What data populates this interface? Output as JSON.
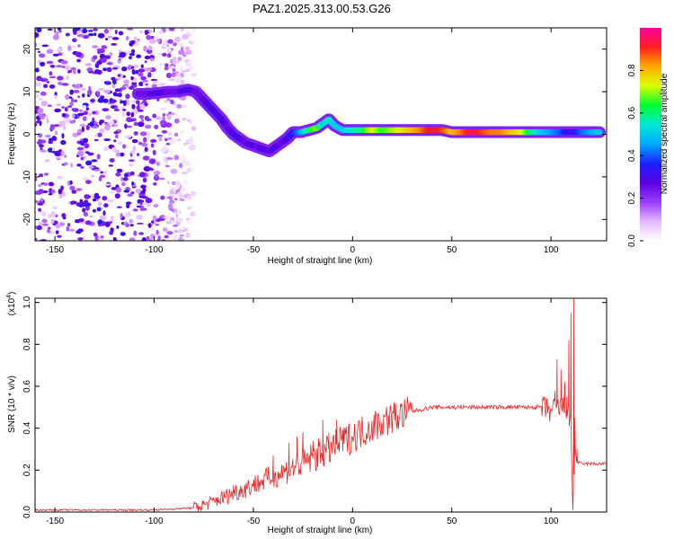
{
  "title": "PAZ1.2025.313.00.53.G26",
  "chart_data": [
    {
      "type": "heatmap",
      "xlabel": "Height of straight line (km)",
      "ylabel": "Frequency (Hz)",
      "xlim": [
        -160,
        128
      ],
      "ylim": [
        -25,
        25
      ],
      "xticks": [
        -150,
        -100,
        -50,
        0,
        50,
        100
      ],
      "yticks": [
        -20,
        -10,
        0,
        10,
        20
      ],
      "colorbar": {
        "label": "Normalized spectral amplitude",
        "range": [
          0,
          1
        ],
        "ticks": [
          "0.0",
          "0.2",
          "0.4",
          "0.6",
          "0.8"
        ],
        "tick_values": [
          0,
          0.2,
          0.4,
          0.6,
          0.8
        ],
        "colors": [
          "#ffffff",
          "#e6b8ff",
          "#9a3cff",
          "#5a00e0",
          "#1a20ff",
          "#00aaff",
          "#00e8d8",
          "#00ff30",
          "#d8ff00",
          "#ffaa00",
          "#ff2020",
          "#ff00a0"
        ]
      },
      "ridge": [
        {
          "x": -108,
          "y": 9.5,
          "amp": 0.25
        },
        {
          "x": -103,
          "y": 9.5,
          "amp": 0.25
        },
        {
          "x": -98,
          "y": 9.7,
          "amp": 0.3
        },
        {
          "x": -93,
          "y": 10,
          "amp": 0.25
        },
        {
          "x": -88,
          "y": 10,
          "amp": 0.25
        },
        {
          "x": -83,
          "y": 10.5,
          "amp": 0.3
        },
        {
          "x": -79,
          "y": 10,
          "amp": 0.25
        },
        {
          "x": -76,
          "y": 8.5,
          "amp": 0.25
        },
        {
          "x": -73,
          "y": 7,
          "amp": 0.3
        },
        {
          "x": -70,
          "y": 5.5,
          "amp": 0.3
        },
        {
          "x": -66,
          "y": 3.5,
          "amp": 0.3
        },
        {
          "x": -63,
          "y": 1.5,
          "amp": 0.25
        },
        {
          "x": -60,
          "y": 0,
          "amp": 0.3
        },
        {
          "x": -57,
          "y": -1,
          "amp": 0.3
        },
        {
          "x": -54,
          "y": -2,
          "amp": 0.25
        },
        {
          "x": -51,
          "y": -2.5,
          "amp": 0.3
        },
        {
          "x": -48,
          "y": -3,
          "amp": 0.25
        },
        {
          "x": -45,
          "y": -3.5,
          "amp": 0.3
        },
        {
          "x": -42,
          "y": -4,
          "amp": 0.25
        },
        {
          "x": -39,
          "y": -3,
          "amp": 0.3
        },
        {
          "x": -36,
          "y": -2,
          "amp": 0.25
        },
        {
          "x": -33,
          "y": -1,
          "amp": 0.3
        },
        {
          "x": -30,
          "y": 0.5,
          "amp": 0.35
        },
        {
          "x": -26,
          "y": 0.5,
          "amp": 0.45
        },
        {
          "x": -22,
          "y": 1,
          "amp": 0.6
        },
        {
          "x": -18,
          "y": 1.5,
          "amp": 0.7
        },
        {
          "x": -15,
          "y": 2.5,
          "amp": 0.5
        },
        {
          "x": -12,
          "y": 3.5,
          "amp": 0.55
        },
        {
          "x": -9,
          "y": 2,
          "amp": 0.5
        },
        {
          "x": -5,
          "y": 1,
          "amp": 0.5
        },
        {
          "x": 0,
          "y": 1,
          "amp": 0.55
        },
        {
          "x": 5,
          "y": 1,
          "amp": 0.6
        },
        {
          "x": 10,
          "y": 1,
          "amp": 0.75
        },
        {
          "x": 15,
          "y": 1,
          "amp": 0.65
        },
        {
          "x": 20,
          "y": 1,
          "amp": 0.7
        },
        {
          "x": 25,
          "y": 1,
          "amp": 0.75
        },
        {
          "x": 30,
          "y": 1,
          "amp": 0.8
        },
        {
          "x": 35,
          "y": 1,
          "amp": 0.85
        },
        {
          "x": 40,
          "y": 1,
          "amp": 0.95
        },
        {
          "x": 45,
          "y": 1,
          "amp": 0.9
        },
        {
          "x": 50,
          "y": 0.5,
          "amp": 0.8
        },
        {
          "x": 55,
          "y": 0.5,
          "amp": 0.85
        },
        {
          "x": 60,
          "y": 0.5,
          "amp": 0.95
        },
        {
          "x": 65,
          "y": 0.5,
          "amp": 0.9
        },
        {
          "x": 70,
          "y": 0.5,
          "amp": 0.85
        },
        {
          "x": 75,
          "y": 0.5,
          "amp": 0.85
        },
        {
          "x": 80,
          "y": 0.5,
          "amp": 0.8
        },
        {
          "x": 85,
          "y": 0.5,
          "amp": 0.75
        },
        {
          "x": 90,
          "y": 0.5,
          "amp": 0.6
        },
        {
          "x": 95,
          "y": 0.5,
          "amp": 0.5
        },
        {
          "x": 100,
          "y": 0.5,
          "amp": 0.45
        },
        {
          "x": 105,
          "y": 0.5,
          "amp": 0.4
        },
        {
          "x": 110,
          "y": 0.5,
          "amp": 0.3
        },
        {
          "x": 115,
          "y": 0.5,
          "amp": 0.4
        },
        {
          "x": 120,
          "y": 0.5,
          "amp": 0.45
        },
        {
          "x": 125,
          "y": 0.5,
          "amp": 0.5
        }
      ],
      "noise_region": {
        "x_range": [
          -160,
          -80
        ],
        "y_range": [
          -25,
          25
        ],
        "amp_max": 0.3
      }
    },
    {
      "type": "line",
      "xlabel": "Height of straight line (km)",
      "ylabel": "SNR (10 * v/v)",
      "y_multiplier": "(x10^4)",
      "y_multiplier_base": "(x10",
      "y_multiplier_exp": "4",
      "y_multiplier_close": ")",
      "xlim": [
        -160,
        128
      ],
      "ylim": [
        0,
        1.02
      ],
      "xticks": [
        -150,
        -100,
        -50,
        0,
        50,
        100
      ],
      "yticks": [
        0,
        0.2,
        0.4,
        0.6,
        0.8,
        1.0
      ],
      "ytick_labels": [
        "0.0",
        "0.2",
        "0.4",
        "0.6",
        "0.8",
        "1.0"
      ],
      "color": "#ee2222",
      "trend": {
        "x": [
          -160,
          -100,
          -80,
          -70,
          -60,
          -50,
          -40,
          -30,
          -20,
          -10,
          0,
          10,
          20,
          30,
          40,
          50,
          60,
          70,
          80,
          90,
          95,
          100,
          105,
          108,
          110,
          111,
          112,
          113,
          115,
          120,
          128
        ],
        "y": [
          0.01,
          0.01,
          0.02,
          0.05,
          0.09,
          0.13,
          0.17,
          0.21,
          0.26,
          0.31,
          0.36,
          0.41,
          0.45,
          0.48,
          0.5,
          0.5,
          0.5,
          0.5,
          0.5,
          0.5,
          0.5,
          0.48,
          0.5,
          0.5,
          0.4,
          0.05,
          0.3,
          0.24,
          0.23,
          0.23,
          0.23
        ]
      },
      "spikes": [
        {
          "x": -60,
          "y": 0.13
        },
        {
          "x": -40,
          "y": 0.27
        },
        {
          "x": -35,
          "y": 0.22
        },
        {
          "x": -32,
          "y": 0.33
        },
        {
          "x": -28,
          "y": 0.36
        },
        {
          "x": -25,
          "y": 0.38
        },
        {
          "x": -20,
          "y": 0.34
        },
        {
          "x": -15,
          "y": 0.44
        },
        {
          "x": -12,
          "y": 0.3
        },
        {
          "x": -8,
          "y": 0.44
        },
        {
          "x": -5,
          "y": 0.39
        },
        {
          "x": 102,
          "y": 0.58
        },
        {
          "x": 103,
          "y": 0.73
        },
        {
          "x": 105,
          "y": 0.68
        },
        {
          "x": 107,
          "y": 0.62
        },
        {
          "x": 108,
          "y": 0.55
        },
        {
          "x": 109,
          "y": 0.82
        },
        {
          "x": 110,
          "y": 0.95
        },
        {
          "x": 110.5,
          "y": 0.2
        },
        {
          "x": 111,
          "y": 0.01
        },
        {
          "x": 111.5,
          "y": 1.02
        },
        {
          "x": 112,
          "y": 0.45
        },
        {
          "x": 113,
          "y": 0.3
        }
      ]
    }
  ]
}
